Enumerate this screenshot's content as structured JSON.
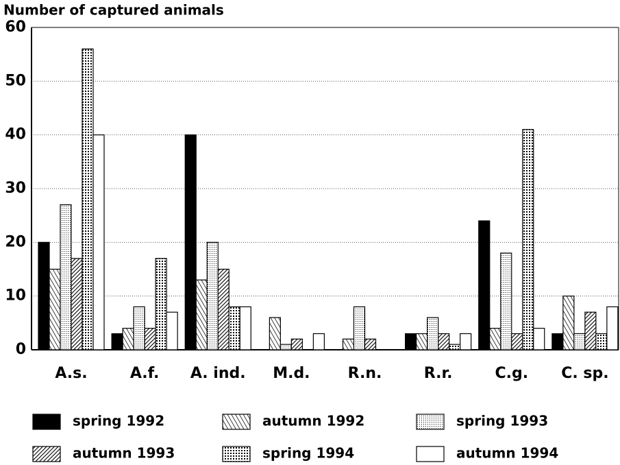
{
  "chart_data": {
    "type": "bar",
    "title": "Number of captured animals",
    "categories": [
      "A.s.",
      "A.f.",
      "A. ind.",
      "M.d.",
      "R.n.",
      "R.r.",
      "C.g.",
      "C. sp."
    ],
    "series": [
      {
        "name": "spring 1992",
        "color": "#000000",
        "values": [
          20,
          3,
          40,
          0,
          0,
          3,
          24,
          3
        ]
      },
      {
        "name": "autumn 1992",
        "color": "#000000",
        "values": [
          15,
          4,
          13,
          6,
          2,
          3,
          4,
          10
        ]
      },
      {
        "name": "spring 1993",
        "color": "#000000",
        "values": [
          27,
          8,
          20,
          1,
          8,
          6,
          18,
          3
        ]
      },
      {
        "name": "autumn 1993",
        "color": "#000000",
        "values": [
          17,
          4,
          15,
          2,
          2,
          3,
          3,
          7
        ]
      },
      {
        "name": "spring 1994",
        "color": "#000000",
        "values": [
          56,
          17,
          8,
          0,
          0,
          1,
          41,
          3
        ]
      },
      {
        "name": "autumn 1994",
        "color": "#ffffff",
        "values": [
          40,
          7,
          8,
          3,
          0,
          3,
          4,
          8
        ]
      }
    ],
    "ylim": [
      0,
      60
    ],
    "yticks": [
      0,
      10,
      20,
      30,
      40,
      50,
      60
    ],
    "grid": true
  }
}
